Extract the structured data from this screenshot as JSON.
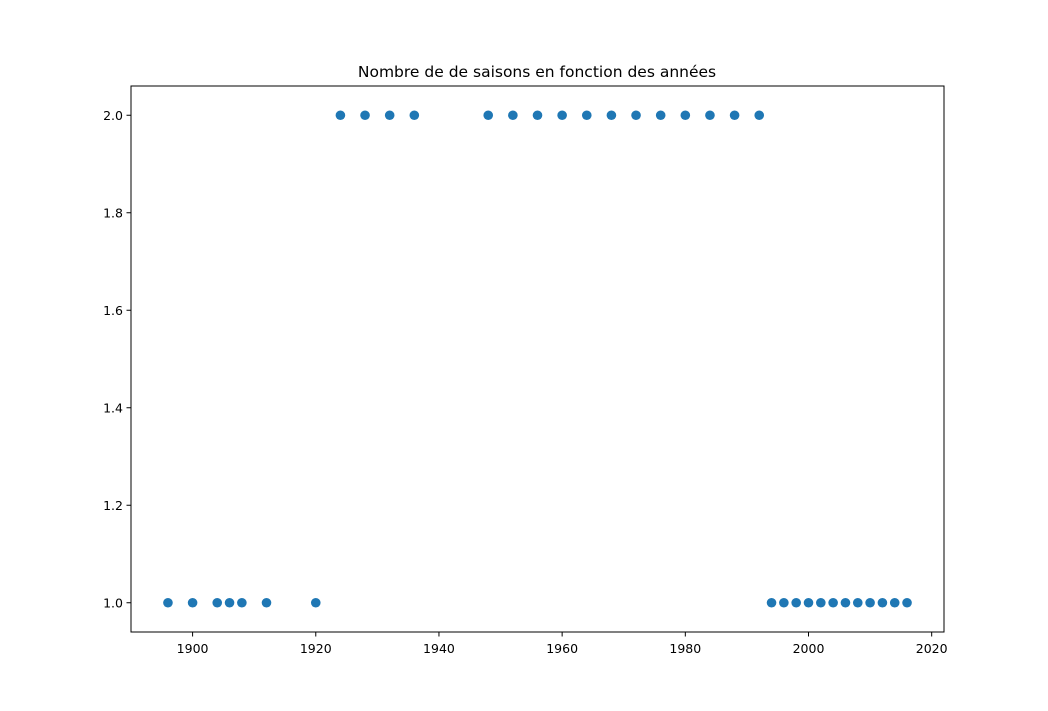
{
  "chart_data": {
    "type": "scatter",
    "title": "Nombre de de saisons en fonction des années",
    "xlabel": "",
    "ylabel": "",
    "xlim": [
      1890,
      2022
    ],
    "ylim": [
      0.94,
      2.06
    ],
    "xticks": [
      1900,
      1920,
      1940,
      1960,
      1980,
      2000,
      2020
    ],
    "yticks": [
      1.0,
      1.2,
      1.4,
      1.6,
      1.8,
      2.0
    ],
    "grid": false,
    "marker_color": "#1f77b4",
    "series": [
      {
        "points": [
          [
            1896,
            1
          ],
          [
            1900,
            1
          ],
          [
            1904,
            1
          ],
          [
            1906,
            1
          ],
          [
            1908,
            1
          ],
          [
            1912,
            1
          ],
          [
            1920,
            1
          ],
          [
            1924,
            2
          ],
          [
            1928,
            2
          ],
          [
            1932,
            2
          ],
          [
            1936,
            2
          ],
          [
            1948,
            2
          ],
          [
            1952,
            2
          ],
          [
            1956,
            2
          ],
          [
            1960,
            2
          ],
          [
            1964,
            2
          ],
          [
            1968,
            2
          ],
          [
            1972,
            2
          ],
          [
            1976,
            2
          ],
          [
            1980,
            2
          ],
          [
            1984,
            2
          ],
          [
            1988,
            2
          ],
          [
            1992,
            2
          ],
          [
            1994,
            1
          ],
          [
            1996,
            1
          ],
          [
            1998,
            1
          ],
          [
            2000,
            1
          ],
          [
            2002,
            1
          ],
          [
            2004,
            1
          ],
          [
            2006,
            1
          ],
          [
            2008,
            1
          ],
          [
            2010,
            1
          ],
          [
            2012,
            1
          ],
          [
            2014,
            1
          ],
          [
            2016,
            1
          ]
        ]
      }
    ]
  }
}
